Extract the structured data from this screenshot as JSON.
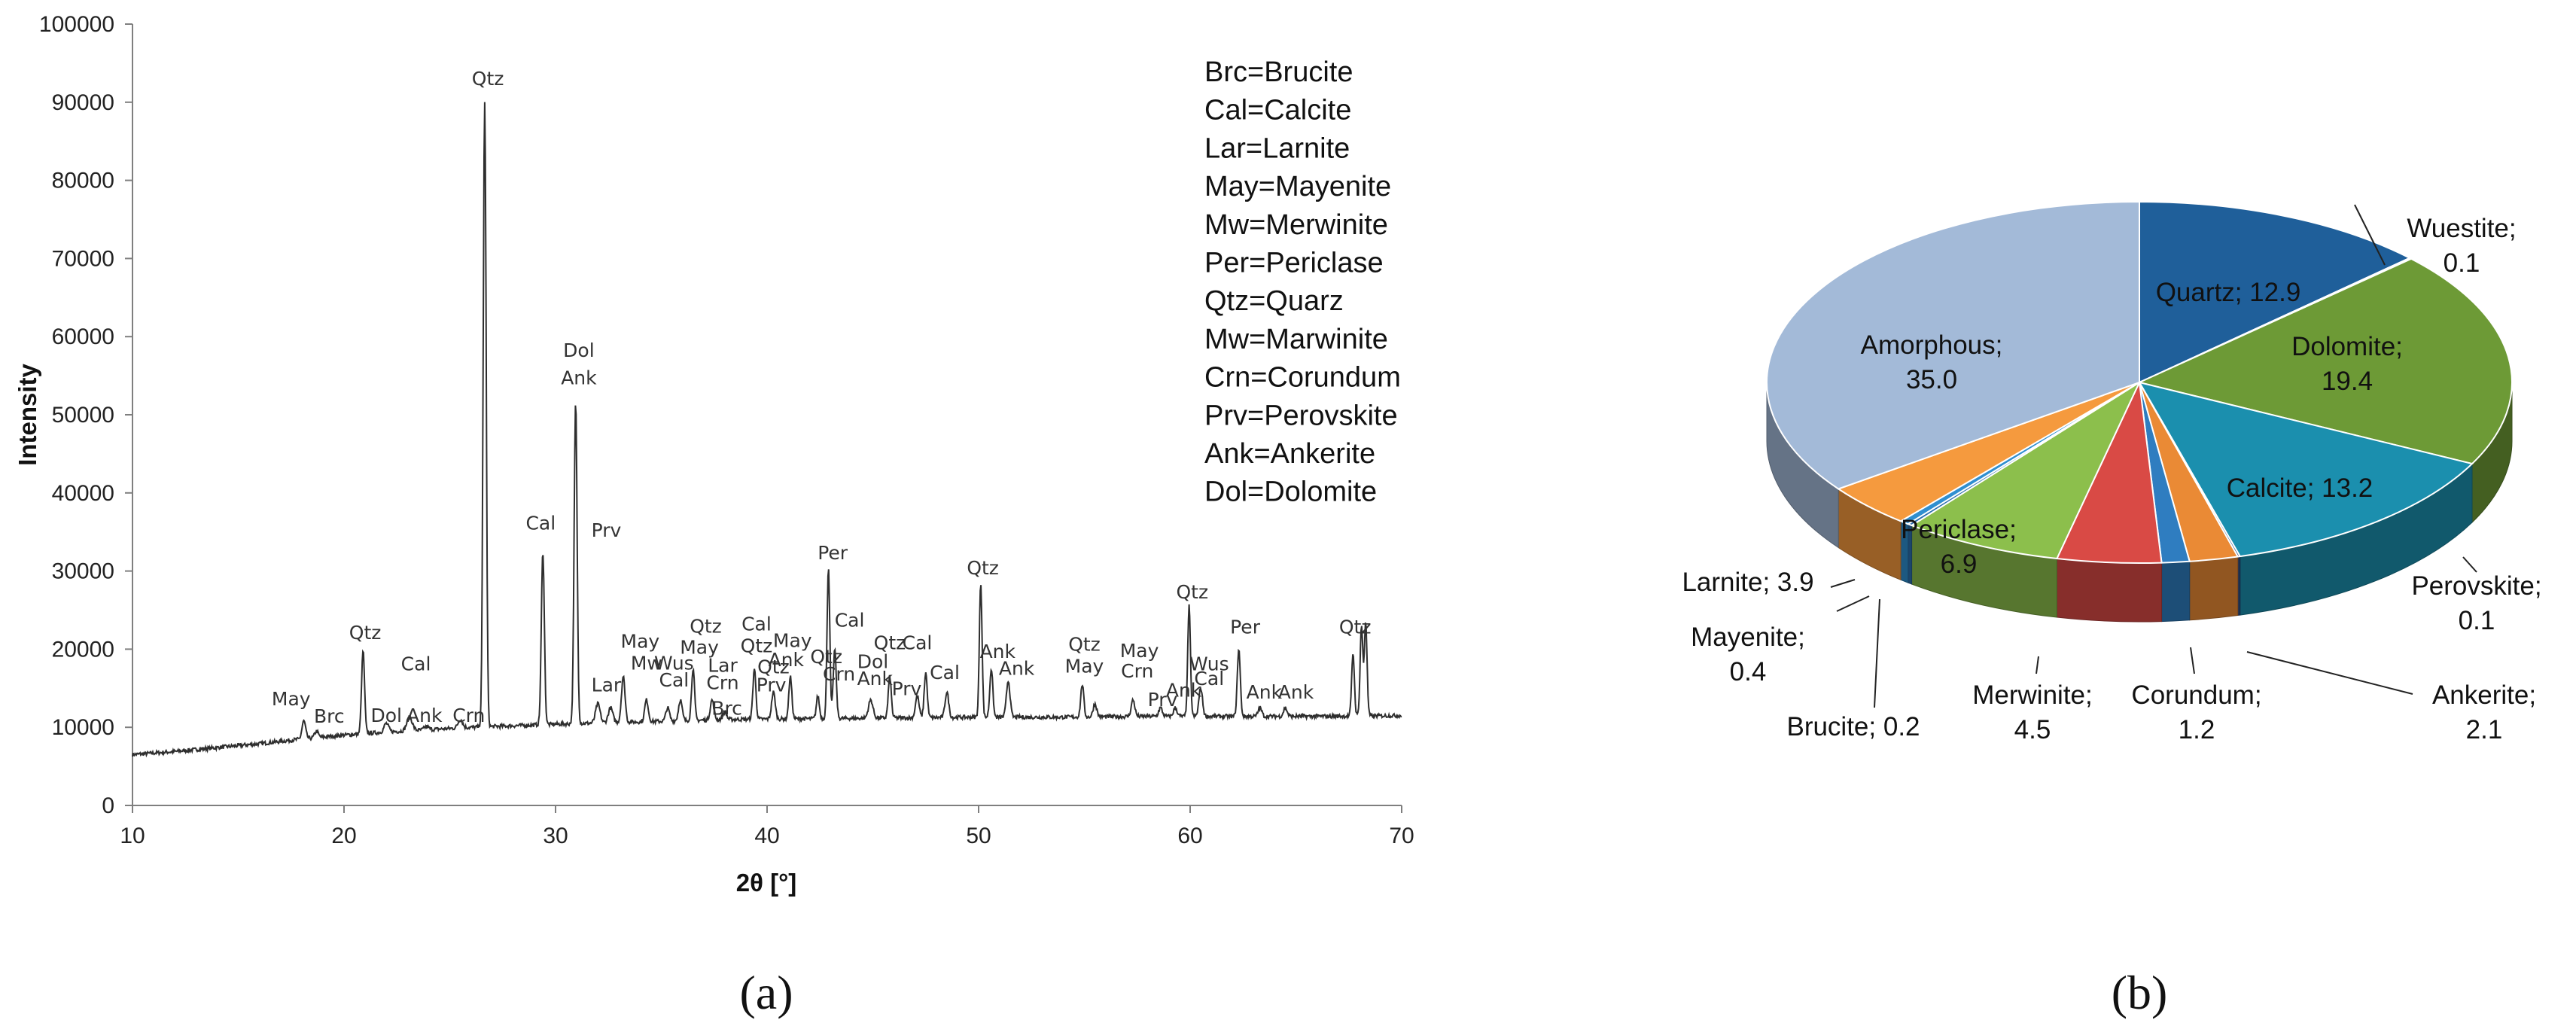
{
  "chart_data": [
    {
      "type": "line",
      "panel_label": "(a)",
      "xlabel": "2θ [°]",
      "ylabel": "Intensity",
      "xlim": [
        10,
        70
      ],
      "ylim": [
        0,
        100000
      ],
      "xticks": [
        "10",
        "20",
        "30",
        "40",
        "50",
        "60",
        "70"
      ],
      "yticks": [
        "0",
        "10000",
        "20000",
        "30000",
        "40000",
        "50000",
        "60000",
        "70000",
        "80000",
        "90000",
        "100000"
      ],
      "grid": false,
      "legend": [
        "Brc=Brucite",
        "Cal=Calcite",
        "Lar=Larnite",
        "May=Mayenite",
        "Mw=Merwinite",
        "Per=Periclase",
        "Qtz=Quarz",
        "Mw=Marwinite",
        "Crn=Corundum",
        "Prv=Perovskite",
        "Ank=Ankerite",
        "Dol=Dolomite"
      ],
      "background": [
        [
          10,
          6500
        ],
        [
          12,
          6900
        ],
        [
          14,
          7400
        ],
        [
          16,
          7900
        ],
        [
          18,
          8500
        ],
        [
          20,
          9000
        ],
        [
          22,
          9400
        ],
        [
          24,
          9700
        ],
        [
          26,
          10000
        ],
        [
          28,
          10200
        ],
        [
          30,
          10400
        ],
        [
          34,
          10700
        ],
        [
          38,
          11000
        ],
        [
          42,
          11100
        ],
        [
          46,
          11200
        ],
        [
          50,
          11300
        ],
        [
          54,
          11300
        ],
        [
          58,
          11400
        ],
        [
          62,
          11400
        ],
        [
          66,
          11400
        ],
        [
          70,
          11500
        ]
      ],
      "peaks": [
        {
          "x": 18.1,
          "y": 10800,
          "w": 0.12
        },
        {
          "x": 18.7,
          "y": 9500,
          "w": 0.12
        },
        {
          "x": 20.9,
          "y": 19800,
          "w": 0.1
        },
        {
          "x": 22.0,
          "y": 10500,
          "w": 0.15
        },
        {
          "x": 23.1,
          "y": 11300,
          "w": 0.18
        },
        {
          "x": 23.9,
          "y": 10100,
          "w": 0.15
        },
        {
          "x": 25.5,
          "y": 11000,
          "w": 0.15
        },
        {
          "x": 26.65,
          "y": 90000,
          "w": 0.1
        },
        {
          "x": 29.4,
          "y": 32500,
          "w": 0.1
        },
        {
          "x": 30.95,
          "y": 51500,
          "w": 0.1
        },
        {
          "x": 32.0,
          "y": 13000,
          "w": 0.15
        },
        {
          "x": 32.6,
          "y": 12500,
          "w": 0.15
        },
        {
          "x": 33.2,
          "y": 16500,
          "w": 0.12
        },
        {
          "x": 34.3,
          "y": 13500,
          "w": 0.12
        },
        {
          "x": 35.3,
          "y": 12500,
          "w": 0.12
        },
        {
          "x": 35.9,
          "y": 13500,
          "w": 0.12
        },
        {
          "x": 36.5,
          "y": 17500,
          "w": 0.1
        },
        {
          "x": 37.4,
          "y": 13500,
          "w": 0.12
        },
        {
          "x": 38.0,
          "y": 12000,
          "w": 0.12
        },
        {
          "x": 39.4,
          "y": 17500,
          "w": 0.1
        },
        {
          "x": 40.3,
          "y": 14500,
          "w": 0.12
        },
        {
          "x": 41.1,
          "y": 16500,
          "w": 0.1
        },
        {
          "x": 42.4,
          "y": 14000,
          "w": 0.1
        },
        {
          "x": 42.9,
          "y": 30500,
          "w": 0.09
        },
        {
          "x": 43.2,
          "y": 20000,
          "w": 0.1
        },
        {
          "x": 44.9,
          "y": 13500,
          "w": 0.15
        },
        {
          "x": 45.8,
          "y": 16500,
          "w": 0.1
        },
        {
          "x": 47.1,
          "y": 14000,
          "w": 0.12
        },
        {
          "x": 47.5,
          "y": 17000,
          "w": 0.1
        },
        {
          "x": 48.5,
          "y": 14500,
          "w": 0.12
        },
        {
          "x": 50.1,
          "y": 28500,
          "w": 0.09
        },
        {
          "x": 50.6,
          "y": 17500,
          "w": 0.1
        },
        {
          "x": 51.4,
          "y": 16000,
          "w": 0.12
        },
        {
          "x": 54.9,
          "y": 15500,
          "w": 0.1
        },
        {
          "x": 55.5,
          "y": 13000,
          "w": 0.12
        },
        {
          "x": 57.3,
          "y": 13500,
          "w": 0.12
        },
        {
          "x": 58.6,
          "y": 12500,
          "w": 0.12
        },
        {
          "x": 59.3,
          "y": 12500,
          "w": 0.12
        },
        {
          "x": 59.95,
          "y": 25500,
          "w": 0.09
        },
        {
          "x": 60.5,
          "y": 15000,
          "w": 0.12
        },
        {
          "x": 62.3,
          "y": 20000,
          "w": 0.1
        },
        {
          "x": 63.3,
          "y": 12500,
          "w": 0.12
        },
        {
          "x": 64.5,
          "y": 12500,
          "w": 0.12
        },
        {
          "x": 67.7,
          "y": 19500,
          "w": 0.09
        },
        {
          "x": 68.1,
          "y": 23000,
          "w": 0.09
        },
        {
          "x": 68.3,
          "y": 23500,
          "w": 0.09
        }
      ],
      "annotations": [
        {
          "text": "May",
          "x": 17.5,
          "y": 12800
        },
        {
          "text": "Brc",
          "x": 19.3,
          "y": 10600
        },
        {
          "text": "Qtz",
          "x": 21.0,
          "y": 21300
        },
        {
          "text": "Dol",
          "x": 22.0,
          "y": 10700
        },
        {
          "text": "Cal",
          "x": 23.4,
          "y": 17300
        },
        {
          "text": "Ank",
          "x": 23.8,
          "y": 10700
        },
        {
          "text": "Crn",
          "x": 25.9,
          "y": 10700
        },
        {
          "text": "Qtz",
          "x": 26.8,
          "y": 92200
        },
        {
          "text": "Cal",
          "x": 29.3,
          "y": 35300
        },
        {
          "text": "Dol",
          "x": 31.1,
          "y": 57400
        },
        {
          "text": "Ank",
          "x": 31.1,
          "y": 53900
        },
        {
          "text": "Prv",
          "x": 32.4,
          "y": 34400
        },
        {
          "text": "Lar",
          "x": 32.4,
          "y": 14600
        },
        {
          "text": "May",
          "x": 34.0,
          "y": 20200
        },
        {
          "text": "Mw",
          "x": 34.3,
          "y": 17400
        },
        {
          "text": "Wus",
          "x": 35.6,
          "y": 17400
        },
        {
          "text": "Cal",
          "x": 35.6,
          "y": 15200
        },
        {
          "text": "Qtz",
          "x": 37.1,
          "y": 22100
        },
        {
          "text": "May",
          "x": 36.8,
          "y": 19400
        },
        {
          "text": "Lar",
          "x": 37.9,
          "y": 17100
        },
        {
          "text": "Crn",
          "x": 37.9,
          "y": 14900
        },
        {
          "text": "Brc",
          "x": 38.1,
          "y": 11600
        },
        {
          "text": "Cal",
          "x": 39.5,
          "y": 22400
        },
        {
          "text": "Qtz",
          "x": 39.5,
          "y": 19600
        },
        {
          "text": "Qtz",
          "x": 40.3,
          "y": 16900
        },
        {
          "text": "Prv",
          "x": 40.2,
          "y": 14600
        },
        {
          "text": "May",
          "x": 41.2,
          "y": 20300
        },
        {
          "text": "Ank",
          "x": 40.9,
          "y": 17800
        },
        {
          "text": "Per",
          "x": 43.1,
          "y": 31500
        },
        {
          "text": "Cal",
          "x": 43.9,
          "y": 22900
        },
        {
          "text": "Qtz",
          "x": 42.8,
          "y": 18200
        },
        {
          "text": "Crn",
          "x": 43.4,
          "y": 16000
        },
        {
          "text": "Qtz",
          "x": 45.8,
          "y": 20000
        },
        {
          "text": "Cal",
          "x": 47.1,
          "y": 20000
        },
        {
          "text": "Dol",
          "x": 45.0,
          "y": 17600
        },
        {
          "text": "Ank",
          "x": 45.1,
          "y": 15400
        },
        {
          "text": "Prv",
          "x": 46.6,
          "y": 14100
        },
        {
          "text": "Cal",
          "x": 48.4,
          "y": 16200
        },
        {
          "text": "Qtz",
          "x": 50.2,
          "y": 29600
        },
        {
          "text": "Ank",
          "x": 50.9,
          "y": 18900
        },
        {
          "text": "Ank",
          "x": 51.8,
          "y": 16700
        },
        {
          "text": "Qtz",
          "x": 55.0,
          "y": 19800
        },
        {
          "text": "May",
          "x": 55.0,
          "y": 17000
        },
        {
          "text": "May",
          "x": 57.6,
          "y": 19000
        },
        {
          "text": "Crn",
          "x": 57.5,
          "y": 16400
        },
        {
          "text": "Prv",
          "x": 58.7,
          "y": 12700
        },
        {
          "text": "Ank",
          "x": 59.7,
          "y": 13900
        },
        {
          "text": "Qtz",
          "x": 60.1,
          "y": 26500
        },
        {
          "text": "Wus",
          "x": 60.9,
          "y": 17300
        },
        {
          "text": "Cal",
          "x": 60.9,
          "y": 15400
        },
        {
          "text": "Per",
          "x": 62.6,
          "y": 22000
        },
        {
          "text": "Ank",
          "x": 63.5,
          "y": 13700
        },
        {
          "text": "Ank",
          "x": 65.0,
          "y": 13700
        },
        {
          "text": "Qtz",
          "x": 67.8,
          "y": 22000
        }
      ]
    },
    {
      "type": "pie",
      "panel_label": "(b)",
      "start_angle_deg": -90,
      "direction": "clockwise",
      "slices": [
        {
          "name": "Quartz",
          "value": 12.9,
          "label": "Quartz; 12.9",
          "color": "#1f5f9a"
        },
        {
          "name": "Wuestite",
          "value": 0.1,
          "label_line1": "Wuestite;",
          "label_line2": "0.1",
          "color": "#4a78b5"
        },
        {
          "name": "Dolomite",
          "value": 19.4,
          "label_line1": "Dolomite;",
          "label_line2": "19.4",
          "color": "#6d9a36"
        },
        {
          "name": "Calcite",
          "value": 13.2,
          "label": "Calcite; 13.2",
          "color": "#1b8fae"
        },
        {
          "name": "Perovskite",
          "value": 0.1,
          "label_line1": "Perovskite;",
          "label_line2": "0.1",
          "color": "#2c4f87"
        },
        {
          "name": "Ankerite",
          "value": 2.1,
          "label_line1": "Ankerite;",
          "label_line2": "2.1",
          "color": "#ea8a35"
        },
        {
          "name": "Corundum",
          "value": 1.2,
          "label_line1": "Corundum;",
          "label_line2": "1.2",
          "color": "#2f7dc0"
        },
        {
          "name": "Merwinite",
          "value": 4.5,
          "label_line1": "Merwinite;",
          "label_line2": "4.5",
          "color": "#d94a45"
        },
        {
          "name": "Periclase",
          "value": 6.9,
          "label_line1": "Periclase;",
          "label_line2": "6.9",
          "color": "#8cbf4c"
        },
        {
          "name": "Brucite",
          "value": 0.2,
          "label": "Brucite; 0.2",
          "color": "#2d6fae"
        },
        {
          "name": "Mayenite",
          "value": 0.4,
          "label_line1": "Mayenite;",
          "label_line2": "0.4",
          "color": "#2f8fd0"
        },
        {
          "name": "Larnite",
          "value": 3.9,
          "label": "Larnite; 3.9",
          "color": "#f59a3e"
        },
        {
          "name": "Amorphous",
          "value": 35.0,
          "label_line1": "Amorphous;",
          "label_line2": "35.0",
          "color": "#a3bad8"
        }
      ]
    }
  ]
}
